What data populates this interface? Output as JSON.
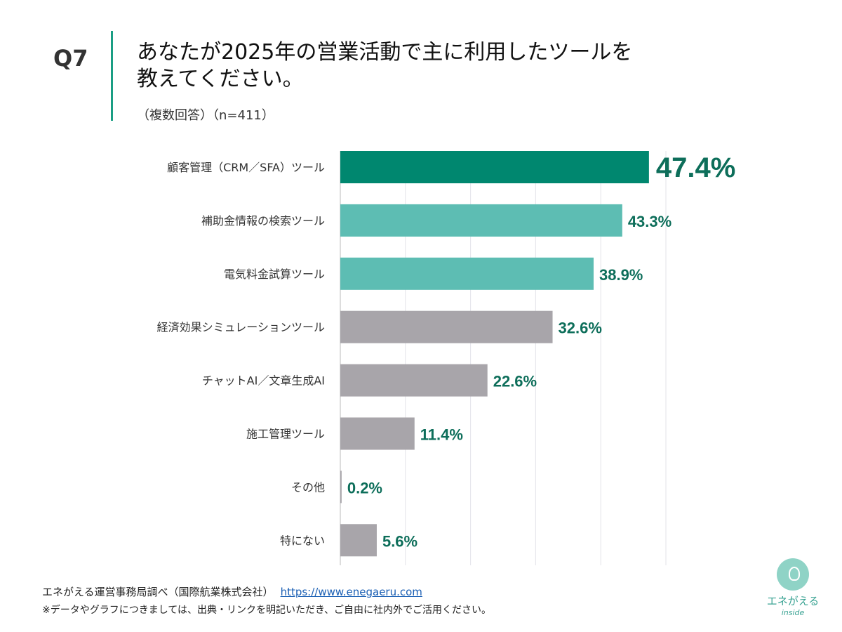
{
  "header": {
    "question_no": "Q7",
    "title_line1": "あなたが2025年の営業活動で主に利用したツールを",
    "title_line2": "教えてください。",
    "subtitle": "（複数回答）（n=411）"
  },
  "chart_data": {
    "type": "bar",
    "orientation": "horizontal",
    "categories": [
      "顧客管理（CRM／SFA）ツール",
      "補助金情報の検索ツール",
      "電気料金試算ツール",
      "経済効果シミュレーションツール",
      "チャットAI／文章生成AI",
      "施工管理ツール",
      "その他",
      "特にない"
    ],
    "values": [
      47.4,
      43.3,
      38.9,
      32.6,
      22.6,
      11.4,
      0.2,
      5.6
    ],
    "data_labels": [
      "47.4%",
      "43.3%",
      "38.9%",
      "32.6%",
      "22.6%",
      "11.4%",
      "0.2%",
      "5.6%"
    ],
    "bar_colors": [
      "#00876f",
      "#5dbdb3",
      "#5dbdb3",
      "#a8a5aa",
      "#a8a5aa",
      "#a8a5aa",
      "#a8a5aa",
      "#a8a5aa"
    ],
    "label_color": "#0d6e5a",
    "xlim": [
      0,
      50
    ],
    "grid": true,
    "grid_step": 10
  },
  "footer": {
    "source": "エネがえる運営事務局調べ（国際航業株式会社）",
    "link": "https://www.enegaeru.com",
    "note": "※データやグラフにつきましては、出典・リンクを明記いただき、ご自由に社内外でご活用ください。"
  },
  "logo": {
    "name": "エネがえる",
    "tag": "inside"
  }
}
